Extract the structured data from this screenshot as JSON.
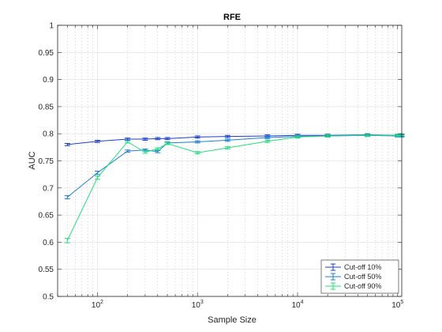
{
  "chart_data": {
    "type": "line",
    "title": "RFE",
    "xlabel": "Sample Size",
    "ylabel": "AUC",
    "xscale": "log",
    "xlim": [
      40,
      110000
    ],
    "ylim": [
      0.5,
      1.0
    ],
    "grid": "on",
    "legend_location": "bottom-right",
    "x_ticks": [
      {
        "value": 100,
        "base": "10",
        "exp": "2"
      },
      {
        "value": 1000,
        "base": "10",
        "exp": "3"
      },
      {
        "value": 10000,
        "base": "10",
        "exp": "4"
      },
      {
        "value": 100000,
        "base": "10",
        "exp": "5"
      }
    ],
    "y_ticks": [
      {
        "value": 0.5,
        "label": "0.5"
      },
      {
        "value": 0.55,
        "label": "0.55"
      },
      {
        "value": 0.6,
        "label": "0.6"
      },
      {
        "value": 0.65,
        "label": "0.65"
      },
      {
        "value": 0.7,
        "label": "0.7"
      },
      {
        "value": 0.75,
        "label": "0.75"
      },
      {
        "value": 0.8,
        "label": "0.8"
      },
      {
        "value": 0.85,
        "label": "0.85"
      },
      {
        "value": 0.9,
        "label": "0.9"
      },
      {
        "value": 0.95,
        "label": "0.95"
      },
      {
        "value": 1.0,
        "label": "1"
      }
    ],
    "series": [
      {
        "name": "Cut-off 10%",
        "color": "#1a3fcc",
        "x": [
          50,
          100,
          200,
          300,
          400,
          500,
          1000,
          2000,
          5000,
          10000,
          20000,
          50000,
          100000,
          110000
        ],
        "y": [
          0.78,
          0.786,
          0.79,
          0.79,
          0.791,
          0.791,
          0.794,
          0.795,
          0.796,
          0.797,
          0.797,
          0.798,
          0.797,
          0.797
        ],
        "err": [
          0.002,
          0.002,
          0.002,
          0.002,
          0.002,
          0.002,
          0.002,
          0.002,
          0.002,
          0.002,
          0.002,
          0.002,
          0.002,
          0.002
        ]
      },
      {
        "name": "Cut-off 50%",
        "color": "#1f7fd1",
        "x": [
          50,
          100,
          200,
          300,
          400,
          500,
          1000,
          2000,
          5000,
          10000,
          20000,
          50000,
          100000,
          110000
        ],
        "y": [
          0.683,
          0.728,
          0.768,
          0.77,
          0.767,
          0.783,
          0.785,
          0.788,
          0.793,
          0.795,
          0.796,
          0.797,
          0.796,
          0.796
        ],
        "err": [
          0.003,
          0.003,
          0.002,
          0.002,
          0.002,
          0.002,
          0.002,
          0.002,
          0.002,
          0.002,
          0.002,
          0.002,
          0.002,
          0.002
        ]
      },
      {
        "name": "Cut-off 90%",
        "color": "#1fe07a",
        "x": [
          50,
          100,
          200,
          300,
          400,
          500,
          1000,
          2000,
          5000,
          10000,
          20000,
          50000,
          100000,
          110000
        ],
        "y": [
          0.603,
          0.719,
          0.785,
          0.766,
          0.772,
          0.782,
          0.765,
          0.774,
          0.786,
          0.794,
          0.796,
          0.797,
          0.797,
          0.798
        ],
        "err": [
          0.004,
          0.003,
          0.002,
          0.002,
          0.002,
          0.002,
          0.002,
          0.002,
          0.002,
          0.002,
          0.002,
          0.002,
          0.002,
          0.002
        ]
      }
    ]
  }
}
